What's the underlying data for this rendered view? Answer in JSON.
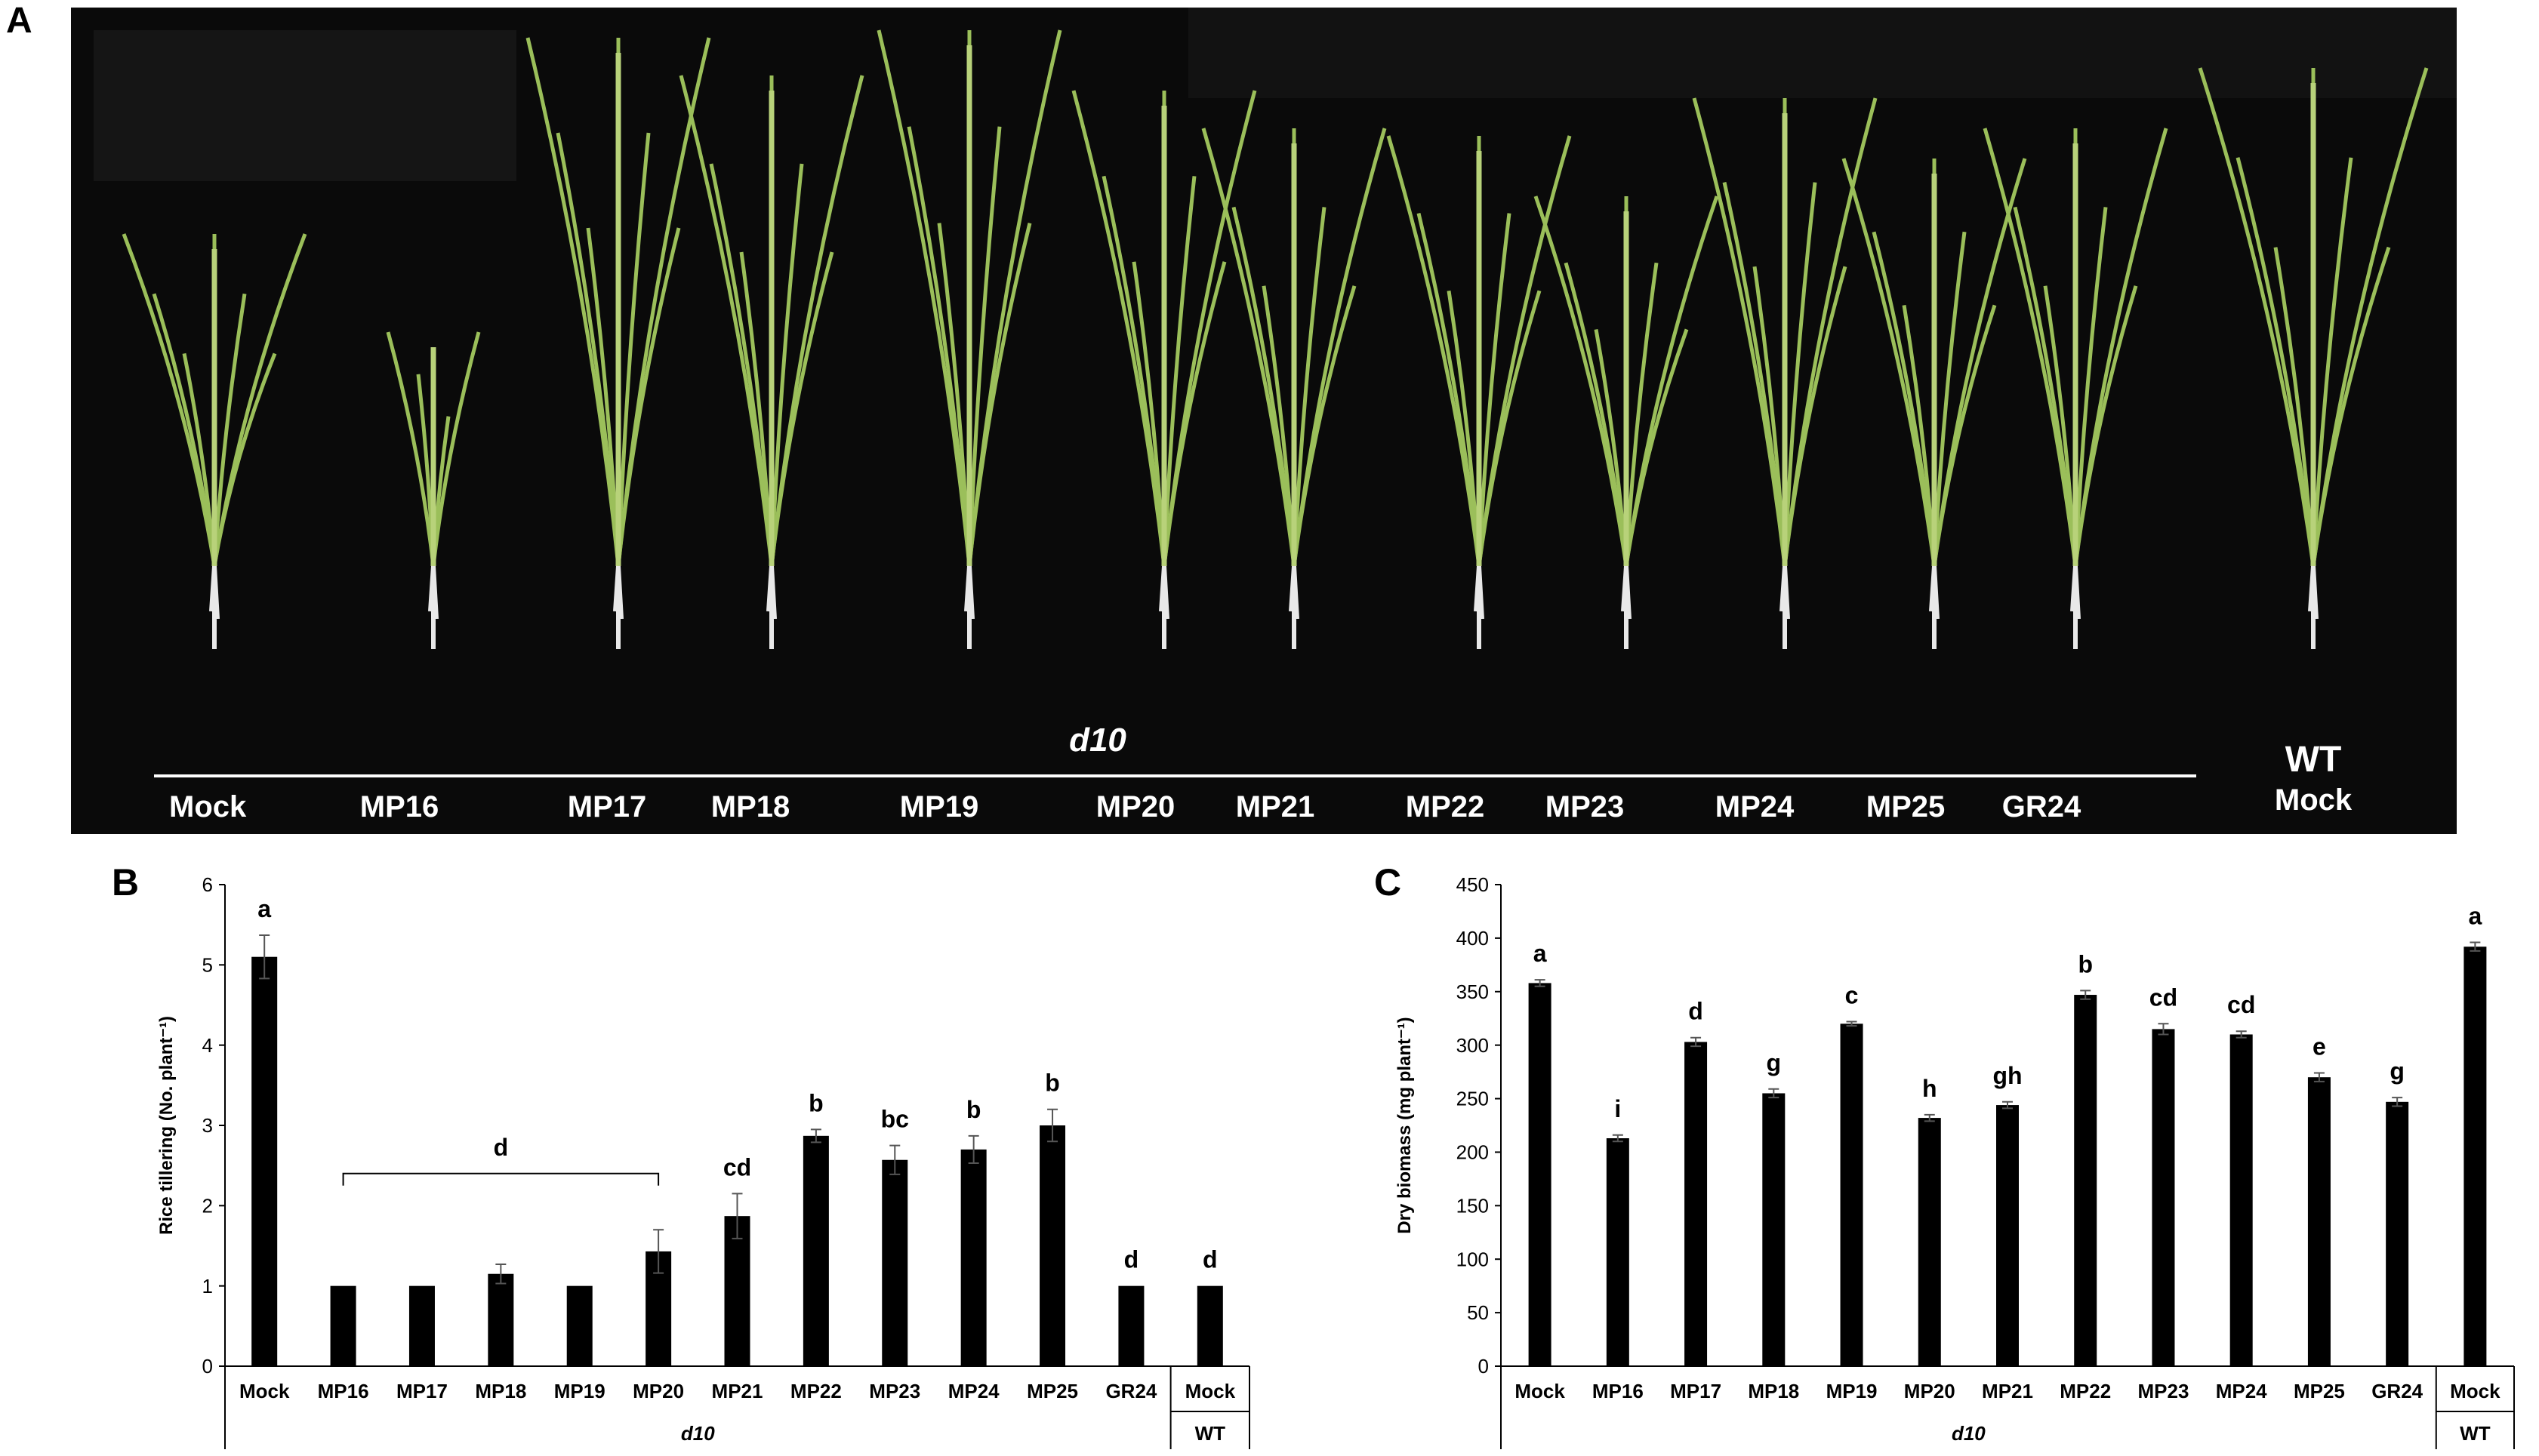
{
  "panels": {
    "A": {
      "letter": "A",
      "group_label": "d10",
      "plant_labels": [
        "Mock",
        "MP16",
        "MP17",
        "MP18",
        "MP19",
        "MP20",
        "MP21",
        "MP22",
        "MP23",
        "MP24",
        "MP25",
        "GR24"
      ],
      "wt_label": "WT",
      "wt_mock_label": "Mock"
    },
    "B": {
      "letter": "B"
    },
    "C": {
      "letter": "C"
    }
  },
  "colors": {
    "bar": "#000000",
    "photo_bg": "#0a0a0a",
    "leaf": "#9bbf5a",
    "root": "#e8e8e8",
    "text_on_photo": "#ffffff"
  },
  "chart_data": [
    {
      "type": "bar",
      "panel": "B",
      "categories": [
        "Mock",
        "MP16",
        "MP17",
        "MP18",
        "MP19",
        "MP20",
        "MP21",
        "MP22",
        "MP23",
        "MP24",
        "MP25",
        "GR24",
        "Mock"
      ],
      "values": [
        5.1,
        1.0,
        1.0,
        1.15,
        1.0,
        1.43,
        1.87,
        2.87,
        2.57,
        2.7,
        3.0,
        1.0,
        1.0
      ],
      "errors": [
        0.27,
        0.0,
        0.0,
        0.12,
        0.0,
        0.27,
        0.28,
        0.08,
        0.18,
        0.17,
        0.2,
        0.0,
        0.0
      ],
      "significance": [
        "a",
        "",
        "",
        "",
        "",
        "",
        "cd",
        "b",
        "bc",
        "b",
        "b",
        "d",
        "d"
      ],
      "bracket": {
        "from": 1,
        "to": 5,
        "label": "d"
      },
      "ylabel": "Rice tillering (No. plant⁻¹)",
      "ylim": [
        0,
        6
      ],
      "yticks": [
        0,
        1,
        2,
        3,
        4,
        5,
        6
      ],
      "group_labels": [
        "d10",
        "WT"
      ]
    },
    {
      "type": "bar",
      "panel": "C",
      "categories": [
        "Mock",
        "MP16",
        "MP17",
        "MP18",
        "MP19",
        "MP20",
        "MP21",
        "MP22",
        "MP23",
        "MP24",
        "MP25",
        "GR24",
        "Mock"
      ],
      "values": [
        358,
        213,
        303,
        255,
        320,
        232,
        244,
        347,
        315,
        310,
        270,
        247,
        392
      ],
      "errors": [
        3,
        3,
        4,
        4,
        2,
        3,
        3,
        4,
        5,
        3,
        4,
        4,
        4
      ],
      "significance": [
        "a",
        "i",
        "d",
        "g",
        "c",
        "h",
        "gh",
        "b",
        "cd",
        "cd",
        "e",
        "g",
        "a"
      ],
      "ylabel": "Dry biomass (mg plant⁻¹)",
      "ylim": [
        0,
        450
      ],
      "yticks": [
        0,
        50,
        100,
        150,
        200,
        250,
        300,
        350,
        400,
        450
      ],
      "group_labels": [
        "d10",
        "WT"
      ]
    }
  ]
}
